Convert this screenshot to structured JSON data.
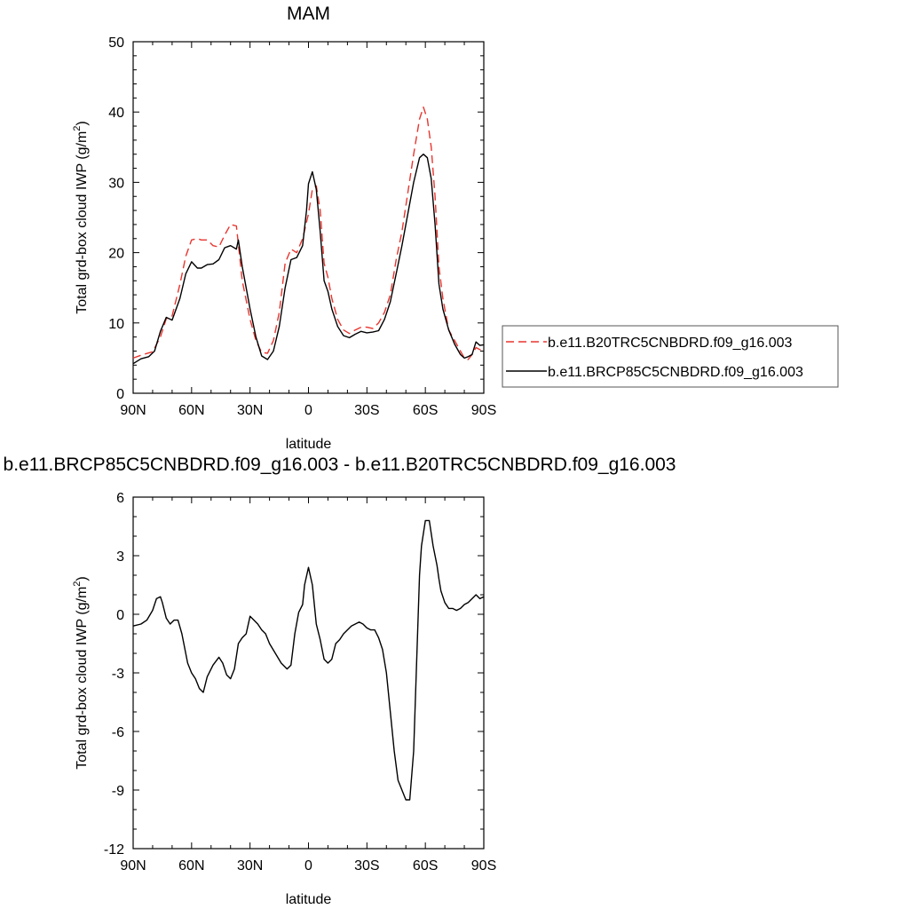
{
  "chart_data": [
    {
      "type": "line",
      "title": "MAM",
      "xlabel": "latitude",
      "ylabel": "Total grd-box cloud IWP (g/m",
      "ylabel_sup": "2",
      "ylabel_tail": ")",
      "xlim": [
        90,
        -90
      ],
      "ylim": [
        0,
        50
      ],
      "xticks": [
        90,
        60,
        30,
        0,
        -30,
        -60,
        -90
      ],
      "xtick_labels": [
        "90N",
        "60N",
        "30N",
        "0",
        "30S",
        "60S",
        "90S"
      ],
      "yticks": [
        0,
        10,
        20,
        30,
        40,
        50
      ],
      "ytick_labels": [
        "0",
        "10",
        "20",
        "30",
        "40",
        "50"
      ],
      "legend_position": "right",
      "series": [
        {
          "name": "b.e11.B20TRC5CNBDRD.f09_g16.003",
          "color": "#e8352e",
          "dash": "dashed",
          "x": [
            90,
            85,
            80,
            76,
            73,
            70,
            66,
            63,
            60,
            57,
            55,
            52,
            49,
            46,
            43,
            40,
            37,
            34,
            30,
            27,
            24,
            21,
            18,
            15,
            12,
            9,
            6,
            3,
            0,
            -2,
            -4,
            -6,
            -8,
            -10,
            -12,
            -15,
            -18,
            -21,
            -24,
            -27,
            -30,
            -33,
            -36,
            -39,
            -42,
            -45,
            -48,
            -51,
            -54,
            -57,
            -59,
            -61,
            -63,
            -65,
            -67,
            -69,
            -72,
            -75,
            -78,
            -80,
            -82,
            -84,
            -86,
            -88,
            -90
          ],
          "y": [
            5,
            5.5,
            5.9,
            8,
            10.6,
            11,
            15.5,
            19.5,
            21.8,
            22,
            21.8,
            21.8,
            21,
            20.8,
            22.5,
            24,
            23.8,
            16,
            10.5,
            7.5,
            5.8,
            5.7,
            7.5,
            11.5,
            18.5,
            20.5,
            20,
            22,
            25.5,
            29,
            29.5,
            26,
            18.5,
            16.5,
            13.5,
            10.5,
            9,
            8.5,
            9,
            9.4,
            9.4,
            9.2,
            10,
            11.5,
            14,
            19,
            23,
            28.5,
            34,
            39,
            40.7,
            39,
            35,
            28,
            18,
            13.5,
            9,
            7.5,
            6,
            5,
            4.8,
            5.5,
            6.5,
            6.2,
            6.1
          ]
        },
        {
          "name": "b.e11.BRCP85C5CNBDRD.f09_g16.003",
          "color": "#000000",
          "dash": "solid",
          "x": [
            90,
            86,
            82,
            79,
            76,
            73,
            70,
            66,
            63,
            60,
            57,
            55,
            52,
            49,
            46,
            43,
            40,
            37,
            36,
            34,
            30,
            27,
            24,
            21,
            18,
            15,
            12,
            9,
            6,
            3,
            1,
            0,
            -2,
            -4,
            -6,
            -8,
            -10,
            -12,
            -15,
            -18,
            -21,
            -24,
            -27,
            -30,
            -33,
            -36,
            -39,
            -42,
            -45,
            -48,
            -51,
            -54,
            -57,
            -59,
            -61,
            -63,
            -65,
            -67,
            -69,
            -72,
            -75,
            -78,
            -80,
            -82,
            -84,
            -86,
            -88,
            -90
          ],
          "y": [
            4.2,
            4.9,
            5.2,
            6,
            8.8,
            10.8,
            10.4,
            13.5,
            17,
            18.7,
            17.8,
            17.8,
            18.3,
            18.4,
            19,
            20.7,
            21,
            20.5,
            21.8,
            18,
            12,
            8,
            5.3,
            4.8,
            6,
            9.5,
            15,
            19,
            19.3,
            21,
            26,
            29.8,
            31.5,
            29,
            23,
            16,
            14.5,
            12,
            9.5,
            8.2,
            7.9,
            8.4,
            8.8,
            8.6,
            8.7,
            8.9,
            10.5,
            13,
            17,
            21,
            25.5,
            30,
            33.5,
            34,
            33.5,
            30.5,
            24,
            15.5,
            12,
            9,
            7,
            5.5,
            5,
            5.2,
            5.5,
            7.3,
            6.8,
            6.9
          ]
        }
      ]
    },
    {
      "type": "line",
      "title": "b.e11.BRCP85C5CNBDRD.f09_g16.003 - b.e11.B20TRC5CNBDRD.f09_g16.003",
      "xlabel": "latitude",
      "ylabel": "Total grd-box cloud IWP (g/m",
      "ylabel_sup": "2",
      "ylabel_tail": ")",
      "xlim": [
        90,
        -90
      ],
      "ylim": [
        -12,
        6
      ],
      "xticks": [
        90,
        60,
        30,
        0,
        -30,
        -60,
        -90
      ],
      "xtick_labels": [
        "90N",
        "60N",
        "30N",
        "0",
        "30S",
        "60S",
        "90S"
      ],
      "yticks": [
        -12,
        -9,
        -6,
        -3,
        0,
        3,
        6
      ],
      "ytick_labels": [
        "-12",
        "-9",
        "-6",
        "-3",
        "0",
        "3",
        "6"
      ],
      "series": [
        {
          "color": "#000000",
          "dash": "solid",
          "x": [
            90,
            86,
            83,
            80,
            78,
            76,
            75,
            73,
            71,
            69,
            67,
            65,
            62,
            60,
            58,
            56,
            54,
            52,
            49,
            46,
            44,
            42,
            40,
            38,
            36,
            34,
            32,
            30,
            28,
            26,
            24,
            22,
            20,
            17,
            14,
            11,
            9,
            7,
            5,
            3,
            2,
            0,
            -2,
            -4,
            -6,
            -8,
            -10,
            -12,
            -14,
            -16,
            -18,
            -20,
            -22,
            -24,
            -26,
            -28,
            -30,
            -32,
            -34,
            -36,
            -38,
            -40,
            -42,
            -44,
            -46,
            -48,
            -50,
            -52,
            -54,
            -55,
            -56,
            -57,
            -58,
            -60,
            -62,
            -64,
            -66,
            -67,
            -68,
            -70,
            -72,
            -74,
            -76,
            -78,
            -80,
            -82,
            -84,
            -86,
            -88,
            -90
          ],
          "y": [
            -0.6,
            -0.5,
            -0.3,
            0.2,
            0.8,
            0.9,
            0.6,
            -0.2,
            -0.5,
            -0.3,
            -0.3,
            -1,
            -2.5,
            -3,
            -3.3,
            -3.8,
            -4,
            -3.2,
            -2.6,
            -2.2,
            -2.5,
            -3.1,
            -3.3,
            -2.8,
            -1.5,
            -1.2,
            -1,
            -0.1,
            -0.3,
            -0.5,
            -0.8,
            -1,
            -1.5,
            -2,
            -2.5,
            -2.8,
            -2.6,
            -1,
            0.1,
            0.5,
            1.5,
            2.4,
            1.5,
            -0.5,
            -1.3,
            -2.3,
            -2.5,
            -2.3,
            -1.5,
            -1.3,
            -1,
            -0.8,
            -0.6,
            -0.5,
            -0.4,
            -0.5,
            -0.7,
            -0.8,
            -0.8,
            -1.2,
            -1.8,
            -3,
            -5,
            -7,
            -8.5,
            -9,
            -9.5,
            -9.5,
            -7,
            -4,
            -1,
            2,
            3.5,
            4.8,
            4.8,
            3.5,
            2.5,
            1.8,
            1.2,
            0.6,
            0.3,
            0.3,
            0.2,
            0.3,
            0.5,
            0.6,
            0.8,
            1,
            0.8,
            0.9
          ]
        }
      ]
    }
  ]
}
